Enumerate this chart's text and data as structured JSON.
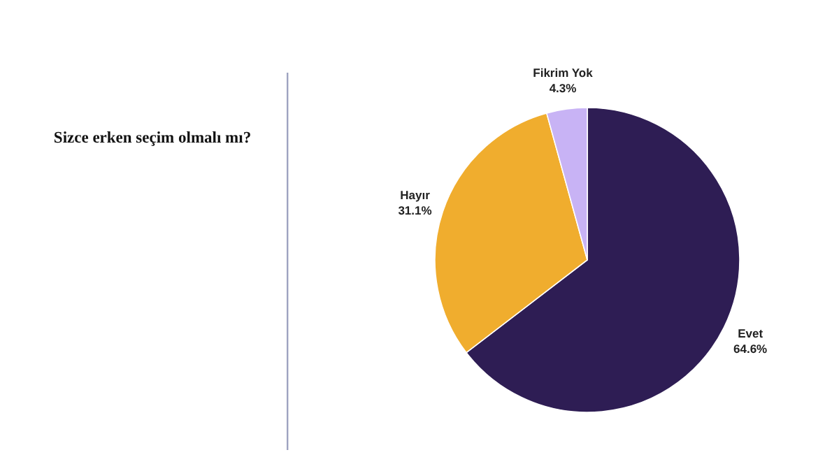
{
  "chart_data": {
    "type": "pie",
    "title": "Sizce erken seçim olmalı mı?",
    "categories": [
      "Evet",
      "Hayır",
      "Fikrim Yok"
    ],
    "values": [
      64.6,
      31.1,
      4.3
    ],
    "colors": [
      "#2e1d54",
      "#f0ad2e",
      "#c8b3f5"
    ],
    "value_labels": [
      "64.6%",
      "31.1%",
      "4.3%"
    ]
  }
}
